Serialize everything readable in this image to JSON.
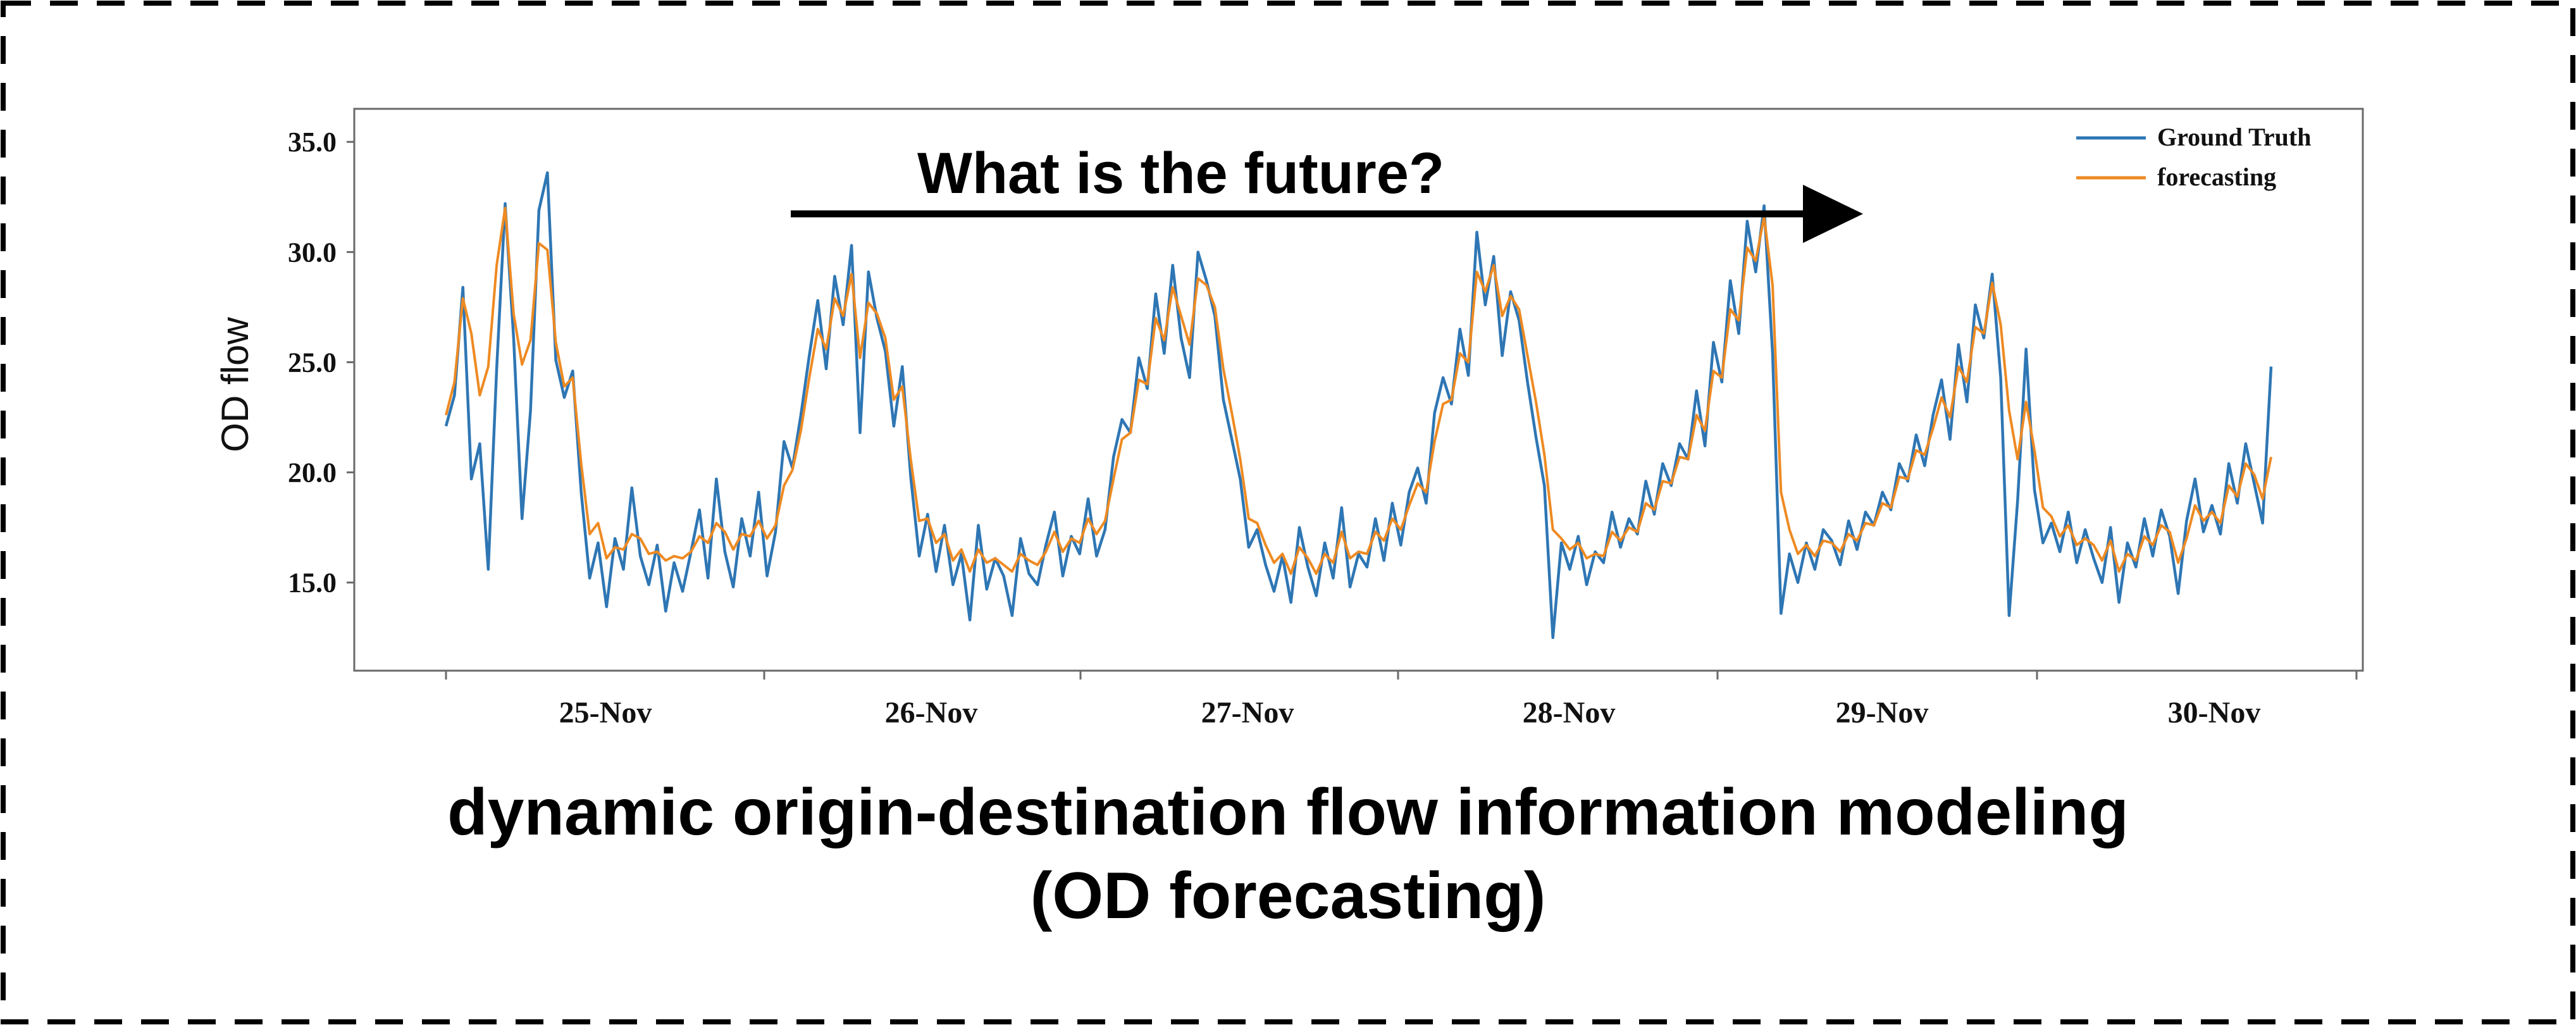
{
  "caption": {
    "line1": "dynamic origin-destination flow information modeling",
    "line2": "(OD forecasting)"
  },
  "chart_data": {
    "type": "line",
    "title": "",
    "xlabel": "",
    "ylabel": "OD flow",
    "ylim": [
      11,
      36.5
    ],
    "yticks": [
      "15.0",
      "20.0",
      "25.0",
      "30.0",
      "35.0"
    ],
    "x_tick_labels": [
      "25-Nov",
      "26-Nov",
      "27-Nov",
      "28-Nov",
      "29-Nov",
      "30-Nov"
    ],
    "grid": false,
    "legend_position": "top-right",
    "colors": {
      "ground_truth": "#2e76b4",
      "forecasting": "#ee8a22",
      "annotation": "#000000"
    },
    "annotation": {
      "text": "What is the future?",
      "arrow": "right"
    },
    "series": [
      {
        "name": "Ground Truth",
        "values": [
          22.1,
          23.5,
          28.4,
          19.7,
          21.3,
          15.6,
          24.7,
          32.2,
          26.1,
          17.9,
          22.8,
          31.9,
          33.6,
          25.1,
          23.4,
          24.6,
          19.1,
          15.2,
          16.8,
          13.9,
          17.0,
          15.6,
          19.3,
          16.2,
          14.9,
          16.7,
          13.7,
          15.9,
          14.6,
          16.4,
          18.3,
          15.2,
          19.7,
          16.4,
          14.8,
          17.9,
          16.2,
          19.1,
          15.3,
          17.3,
          21.4,
          20.2,
          22.6,
          25.3,
          27.8,
          24.7,
          28.9,
          26.7,
          30.3,
          21.8,
          29.1,
          27.0,
          25.5,
          22.1,
          24.8,
          19.8,
          16.2,
          18.1,
          15.5,
          17.6,
          14.9,
          16.3,
          13.3,
          17.6,
          14.7,
          16.1,
          15.3,
          13.5,
          17.0,
          15.4,
          14.9,
          16.7,
          18.2,
          15.3,
          17.1,
          16.3,
          18.8,
          16.2,
          17.4,
          20.7,
          22.4,
          21.8,
          25.2,
          23.8,
          28.1,
          25.4,
          29.4,
          26.1,
          24.3,
          30.0,
          28.7,
          27.1,
          23.3,
          21.5,
          19.7,
          16.6,
          17.4,
          15.8,
          14.6,
          16.2,
          14.1,
          17.5,
          15.7,
          14.4,
          16.8,
          15.2,
          18.4,
          14.8,
          16.3,
          15.7,
          17.9,
          16.0,
          18.6,
          16.7,
          19.1,
          20.2,
          18.6,
          22.7,
          24.3,
          23.1,
          26.5,
          24.4,
          30.9,
          27.6,
          29.8,
          25.3,
          28.2,
          26.9,
          24.1,
          21.6,
          19.4,
          12.5,
          16.8,
          15.6,
          17.1,
          14.9,
          16.4,
          15.9,
          18.2,
          16.6,
          17.9,
          17.2,
          19.6,
          18.1,
          20.4,
          19.4,
          21.3,
          20.6,
          23.7,
          21.2,
          25.9,
          24.1,
          28.7,
          26.3,
          31.4,
          29.1,
          32.1,
          25.4,
          13.6,
          16.3,
          15.0,
          16.8,
          15.6,
          17.4,
          16.9,
          15.8,
          17.8,
          16.5,
          18.2,
          17.6,
          19.1,
          18.3,
          20.4,
          19.6,
          21.7,
          20.3,
          22.6,
          24.2,
          21.5,
          25.8,
          23.2,
          27.6,
          26.1,
          29.0,
          24.3,
          13.5,
          18.7,
          25.6,
          19.2,
          16.8,
          17.7,
          16.4,
          18.2,
          15.9,
          17.4,
          16.1,
          15.0,
          17.5,
          14.1,
          16.8,
          15.7,
          17.9,
          16.2,
          18.3,
          17.1,
          14.5,
          17.8,
          19.7,
          17.3,
          18.5,
          17.2,
          20.4,
          18.6,
          21.3,
          19.5,
          17.7,
          24.8
        ]
      },
      {
        "name": "forecasting",
        "values": [
          22.6,
          24.1,
          27.9,
          26.3,
          23.5,
          24.8,
          29.4,
          32.0,
          27.2,
          24.9,
          26.0,
          30.4,
          30.1,
          25.9,
          23.9,
          24.3,
          20.4,
          17.2,
          17.7,
          16.1,
          16.6,
          16.5,
          17.2,
          17.0,
          16.3,
          16.4,
          16.0,
          16.2,
          16.1,
          16.4,
          17.1,
          16.8,
          17.7,
          17.3,
          16.5,
          17.2,
          17.1,
          17.8,
          17.0,
          17.6,
          19.4,
          20.1,
          21.9,
          24.3,
          26.5,
          25.6,
          27.9,
          27.1,
          29.0,
          25.2,
          27.7,
          27.2,
          26.1,
          23.3,
          23.9,
          20.6,
          17.8,
          17.9,
          16.8,
          17.2,
          16.0,
          16.5,
          15.5,
          16.5,
          15.9,
          16.1,
          15.8,
          15.5,
          16.3,
          16.0,
          15.8,
          16.4,
          17.3,
          16.4,
          17.0,
          16.8,
          17.9,
          17.2,
          17.8,
          19.7,
          21.5,
          21.8,
          24.2,
          24.0,
          27.0,
          26.0,
          28.4,
          27.1,
          25.8,
          28.8,
          28.5,
          27.5,
          24.7,
          22.7,
          20.6,
          17.9,
          17.7,
          16.7,
          15.9,
          16.3,
          15.4,
          16.6,
          16.1,
          15.4,
          16.3,
          15.9,
          17.3,
          16.1,
          16.4,
          16.3,
          17.3,
          16.9,
          17.9,
          17.4,
          18.5,
          19.5,
          19.1,
          21.4,
          23.1,
          23.3,
          25.4,
          25.0,
          29.1,
          28.2,
          29.4,
          27.1,
          28.0,
          27.4,
          25.3,
          23.2,
          20.8,
          17.4,
          17.0,
          16.5,
          16.8,
          16.1,
          16.3,
          16.2,
          17.3,
          16.9,
          17.5,
          17.3,
          18.6,
          18.3,
          19.6,
          19.5,
          20.7,
          20.6,
          22.6,
          21.9,
          24.6,
          24.3,
          27.4,
          26.9,
          30.2,
          29.6,
          31.6,
          28.5,
          19.1,
          17.4,
          16.3,
          16.7,
          16.2,
          16.9,
          16.8,
          16.4,
          17.2,
          16.9,
          17.7,
          17.6,
          18.6,
          18.4,
          19.8,
          19.7,
          21.0,
          20.8,
          22.0,
          23.4,
          22.5,
          24.8,
          24.1,
          26.6,
          26.3,
          28.6,
          26.7,
          22.8,
          20.6,
          23.2,
          21.0,
          18.4,
          18.0,
          17.1,
          17.6,
          16.7,
          17.0,
          16.7,
          16.0,
          16.9,
          15.5,
          16.3,
          16.0,
          17.1,
          16.7,
          17.6,
          17.3,
          15.9,
          17.0,
          18.5,
          17.8,
          18.2,
          17.7,
          19.4,
          18.9,
          20.4,
          19.9,
          18.8,
          20.7
        ]
      }
    ]
  }
}
